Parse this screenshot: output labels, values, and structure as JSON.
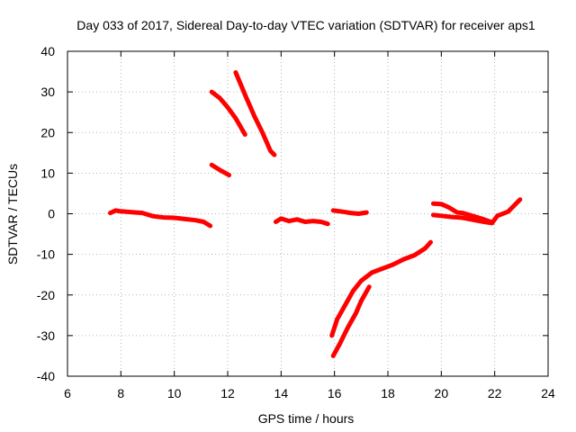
{
  "chart_data": {
    "type": "line",
    "title": "Day 033 of 2017, Sidereal Day-to-day VTEC variation (SDTVAR) for receiver aps1",
    "xlabel": "GPS time / hours",
    "ylabel": "SDTVAR / TECUs",
    "xlim": [
      6,
      24
    ],
    "ylim": [
      -40,
      40
    ],
    "xticks": [
      6,
      8,
      10,
      12,
      14,
      16,
      18,
      20,
      22,
      24
    ],
    "yticks": [
      -40,
      -30,
      -20,
      -10,
      0,
      10,
      20,
      30,
      40
    ],
    "grid": true,
    "color": "#ff0000",
    "series": [
      {
        "name": "seg1",
        "points": [
          [
            7.6,
            0.2
          ],
          [
            7.8,
            0.8
          ],
          [
            8.0,
            0.6
          ],
          [
            8.4,
            0.4
          ],
          [
            8.8,
            0.2
          ],
          [
            9.2,
            -0.6
          ],
          [
            9.6,
            -0.9
          ],
          [
            10.0,
            -1.0
          ],
          [
            10.4,
            -1.3
          ],
          [
            10.8,
            -1.6
          ],
          [
            11.1,
            -2.0
          ],
          [
            11.35,
            -3.0
          ]
        ]
      },
      {
        "name": "seg2",
        "points": [
          [
            11.4,
            30.0
          ],
          [
            11.7,
            28.5
          ],
          [
            12.0,
            26.2
          ],
          [
            12.3,
            23.5
          ],
          [
            12.65,
            19.5
          ]
        ]
      },
      {
        "name": "seg3",
        "points": [
          [
            11.4,
            12.0
          ],
          [
            11.7,
            10.8
          ],
          [
            12.05,
            9.5
          ]
        ]
      },
      {
        "name": "seg4",
        "points": [
          [
            12.3,
            34.8
          ],
          [
            12.7,
            28.5
          ],
          [
            13.0,
            24.0
          ],
          [
            13.3,
            20.0
          ],
          [
            13.6,
            15.5
          ],
          [
            13.75,
            14.5
          ]
        ]
      },
      {
        "name": "seg5",
        "points": [
          [
            13.8,
            -2.0
          ],
          [
            14.0,
            -1.2
          ],
          [
            14.3,
            -1.8
          ],
          [
            14.6,
            -1.4
          ],
          [
            14.9,
            -2.0
          ],
          [
            15.2,
            -1.8
          ],
          [
            15.5,
            -2.0
          ],
          [
            15.75,
            -2.5
          ]
        ]
      },
      {
        "name": "seg6",
        "points": [
          [
            15.95,
            0.8
          ],
          [
            16.3,
            0.5
          ],
          [
            16.6,
            0.2
          ],
          [
            16.9,
            0.0
          ],
          [
            17.2,
            0.3
          ]
        ]
      },
      {
        "name": "seg7",
        "points": [
          [
            15.9,
            -30.0
          ],
          [
            16.1,
            -26.0
          ],
          [
            16.4,
            -22.5
          ],
          [
            16.7,
            -19.0
          ],
          [
            17.0,
            -16.5
          ],
          [
            17.4,
            -14.5
          ],
          [
            17.8,
            -13.5
          ],
          [
            18.2,
            -12.5
          ],
          [
            18.6,
            -11.2
          ],
          [
            19.0,
            -10.2
          ],
          [
            19.4,
            -8.5
          ],
          [
            19.6,
            -7.0
          ]
        ]
      },
      {
        "name": "seg8",
        "points": [
          [
            15.95,
            -35.0
          ],
          [
            16.2,
            -32.0
          ],
          [
            16.5,
            -28.0
          ],
          [
            16.8,
            -24.5
          ],
          [
            17.0,
            -21.5
          ],
          [
            17.3,
            -18.0
          ]
        ]
      },
      {
        "name": "seg9",
        "points": [
          [
            19.7,
            2.5
          ],
          [
            20.0,
            2.4
          ],
          [
            20.3,
            1.5
          ],
          [
            20.6,
            0.3
          ],
          [
            20.8,
            0.2
          ],
          [
            21.2,
            -0.6
          ],
          [
            21.6,
            -1.4
          ],
          [
            21.85,
            -2.0
          ]
        ]
      },
      {
        "name": "seg10",
        "points": [
          [
            19.7,
            -0.3
          ],
          [
            20.0,
            -0.5
          ],
          [
            20.4,
            -0.8
          ],
          [
            20.8,
            -1.0
          ],
          [
            21.2,
            -1.5
          ],
          [
            21.6,
            -2.0
          ],
          [
            21.9,
            -2.3
          ],
          [
            22.1,
            -0.5
          ],
          [
            22.5,
            0.5
          ],
          [
            22.95,
            3.5
          ]
        ]
      }
    ]
  }
}
